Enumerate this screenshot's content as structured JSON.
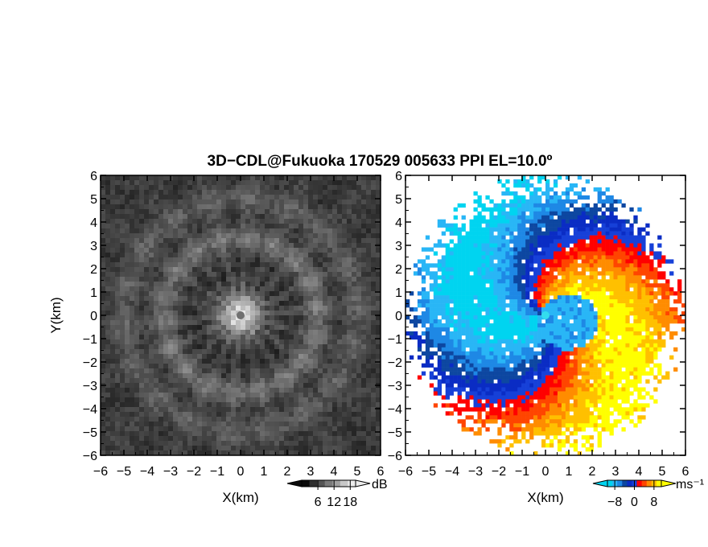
{
  "title": "3D−CDL@Fukuoka 170529 005633 PPI EL=10.0º",
  "colors": {
    "reflectivity_scale": [
      "#0a0a0a",
      "#303030",
      "#555555",
      "#7a7a7a",
      "#a0a0a0",
      "#c8c8c8",
      "#ececec"
    ],
    "velocity_scale": [
      "#00d4f0",
      "#29b6f6",
      "#1e88e5",
      "#0d47a1",
      "#0a2cc4",
      "#1640d8",
      "#ff0000",
      "#ff4500",
      "#ff8c00",
      "#ffc000",
      "#ffff00"
    ],
    "radar_marker_left": "#707070",
    "radar_marker_right": "#33ddee"
  },
  "chart_data": [
    {
      "type": "heatmap",
      "field": "reflectivity",
      "xlabel": "X(km)",
      "ylabel": "Y(km)",
      "xlim": [
        -6,
        6
      ],
      "ylim": [
        -6,
        6
      ],
      "xticks": [
        "−6",
        "−5",
        "−4",
        "−3",
        "−2",
        "−1",
        "0",
        "1",
        "2",
        "3",
        "4",
        "5",
        "6"
      ],
      "yticks": [
        "−6",
        "−5",
        "−4",
        "−3",
        "−2",
        "−1",
        "0",
        "1",
        "2",
        "3",
        "4",
        "5",
        "6"
      ],
      "pattern": "concentric bright rings around radar at origin; brightest near r≈0.5 km, rings near r≈3.3 km and r≈5 km; radial streaks",
      "colorbar": {
        "unit": "dB",
        "ticks": [
          "6",
          "12",
          "18"
        ],
        "range": [
          0,
          20
        ]
      }
    },
    {
      "type": "heatmap",
      "field": "radial_velocity",
      "xlabel": "X(km)",
      "ylabel": "",
      "xlim": [
        -6,
        6
      ],
      "ylim": [
        -6,
        6
      ],
      "xticks": [
        "−6",
        "−5",
        "−4",
        "−3",
        "−2",
        "−1",
        "0",
        "1",
        "2",
        "3",
        "4",
        "5",
        "6"
      ],
      "yticks": [
        "−6",
        "−5",
        "−4",
        "−3",
        "−2",
        "−1",
        "0",
        "1",
        "2",
        "3",
        "4",
        "5",
        "6"
      ],
      "pattern": "dipole: negative (blue/cyan) to the west, positive (red/yellow) to the east, spiral shear line through the radar",
      "colorbar": {
        "unit": "ms⁻¹",
        "ticks": [
          "−8",
          "0",
          "8"
        ],
        "range": [
          -11,
          11
        ]
      }
    }
  ]
}
